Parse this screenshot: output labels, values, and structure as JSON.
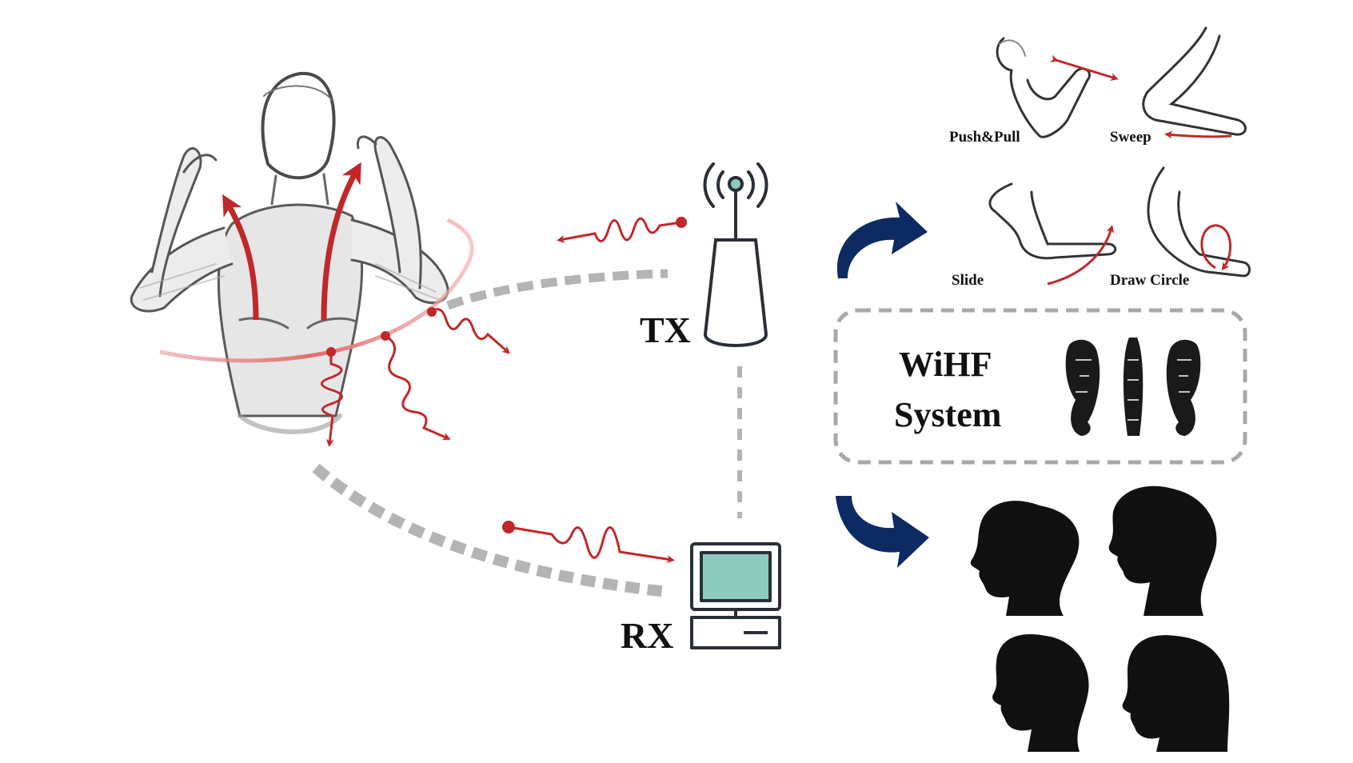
{
  "labels": {
    "tx": "TX",
    "rx": "RX",
    "system_line1": "WiHF",
    "system_line2": "System"
  },
  "gestures": [
    {
      "label": "Push&Pull"
    },
    {
      "label": "Sweep"
    },
    {
      "label": "Slide"
    },
    {
      "label": "Draw Circle"
    }
  ],
  "colors": {
    "signal_red": "#c0282a",
    "flow_navy": "#0e2a63",
    "dashed_gray": "#b4b4b4",
    "monitor_screen": "#8fcbbd",
    "antenna_tip": "#8fcbbd",
    "sketch_gray": "#555555",
    "silhouette": "#111111"
  },
  "icons": [
    "person-sketch-icon",
    "router-antenna-icon",
    "computer-icon",
    "arm-gesture-icon",
    "seal-script-icon",
    "head-silhouette-icon"
  ]
}
